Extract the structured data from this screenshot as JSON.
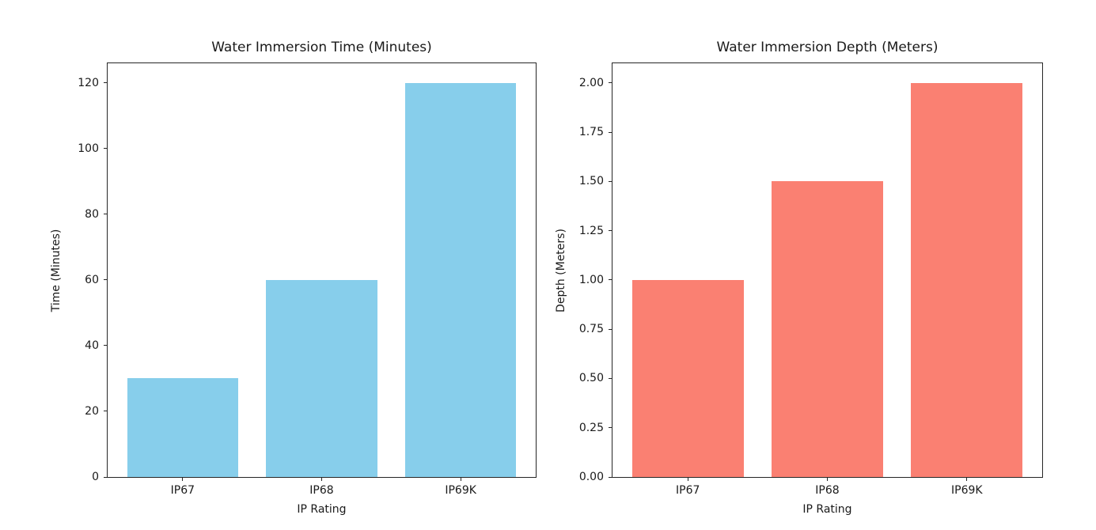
{
  "figure": {
    "background": "#ffffff",
    "text_color": "#1a1a1a",
    "spine_color": "#262626"
  },
  "chart_data": [
    {
      "type": "bar",
      "title": "Water Immersion Time (Minutes)",
      "xlabel": "IP Rating",
      "ylabel": "Time (Minutes)",
      "categories": [
        "IP67",
        "IP68",
        "IP69K"
      ],
      "values": [
        30,
        60,
        120
      ],
      "bar_color": "#87CEEB",
      "bar_width_fraction": 0.8,
      "ylim": [
        0,
        126
      ],
      "yticks": [
        0,
        20,
        40,
        60,
        80,
        100,
        120
      ],
      "ytick_labels": [
        "0",
        "20",
        "40",
        "60",
        "80",
        "100",
        "120"
      ],
      "grid": false,
      "legend": "none"
    },
    {
      "type": "bar",
      "title": "Water Immersion Depth (Meters)",
      "xlabel": "IP Rating",
      "ylabel": "Depth (Meters)",
      "categories": [
        "IP67",
        "IP68",
        "IP69K"
      ],
      "values": [
        1.0,
        1.5,
        2.0
      ],
      "bar_color": "#FA8072",
      "bar_width_fraction": 0.8,
      "ylim": [
        0,
        2.1
      ],
      "yticks": [
        0,
        0.25,
        0.5,
        0.75,
        1.0,
        1.25,
        1.5,
        1.75,
        2.0
      ],
      "ytick_labels": [
        "0.00",
        "0.25",
        "0.50",
        "0.75",
        "1.00",
        "1.25",
        "1.50",
        "1.75",
        "2.00"
      ],
      "grid": false,
      "legend": "none"
    }
  ]
}
